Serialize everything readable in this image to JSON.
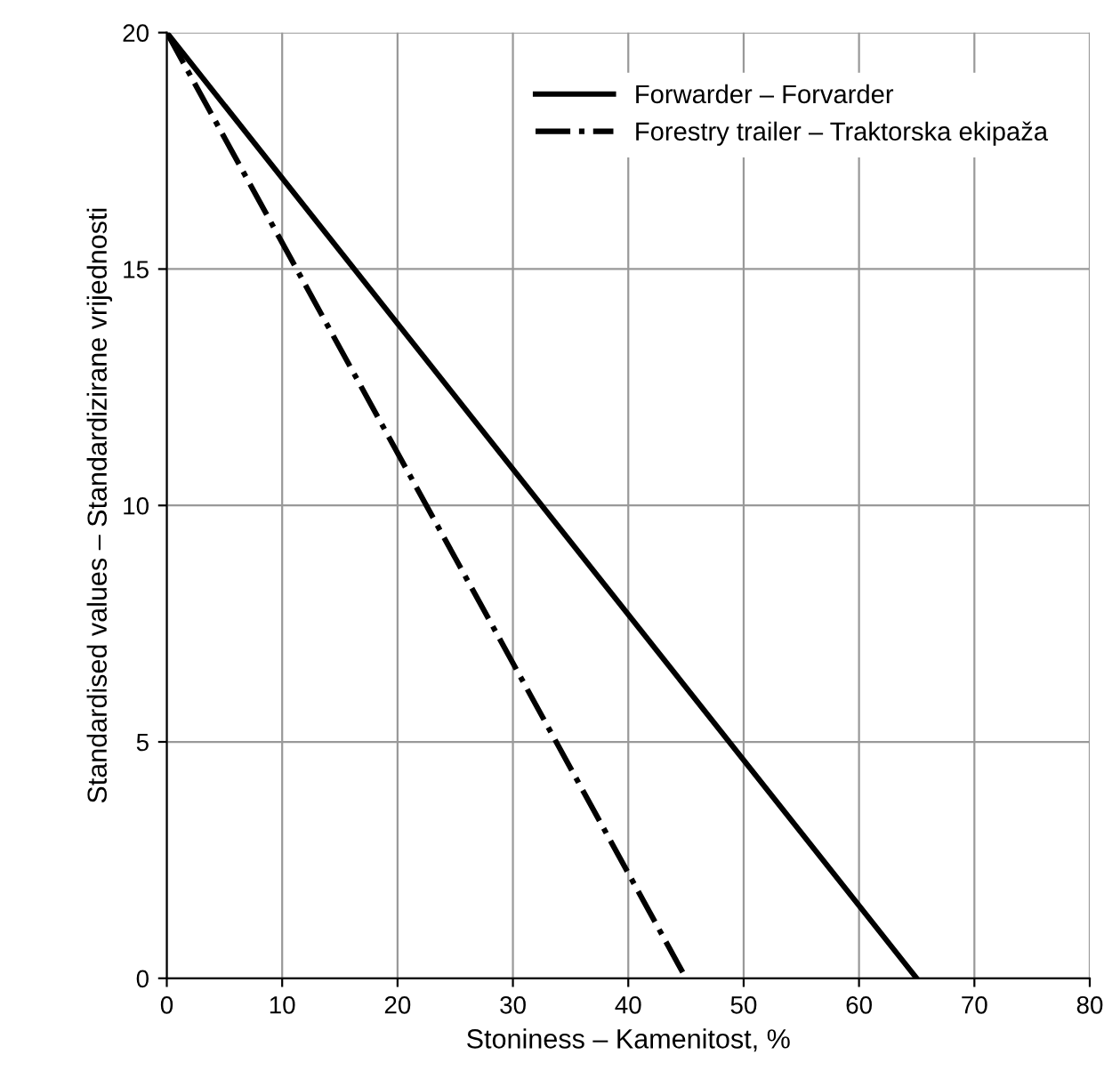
{
  "chart_data": {
    "type": "line",
    "xlabel": "Stoniness – Kamenitost, %",
    "ylabel": "Standardised values – Standardizirane vrijednosti",
    "series": [
      {
        "name": "Forwarder – Forvarder",
        "color": "#000000",
        "line_style": "solid",
        "x": [
          0,
          65
        ],
        "values": [
          20,
          0
        ]
      },
      {
        "name": "Forestry trailer – Traktorska ekipaža",
        "color": "#000000",
        "line_style": "dashdot",
        "x": [
          0,
          45
        ],
        "values": [
          20,
          0
        ]
      }
    ],
    "xlim": [
      0,
      80
    ],
    "xticks": [
      0,
      10,
      20,
      30,
      40,
      50,
      60,
      70,
      80
    ],
    "ylim": [
      0,
      20
    ],
    "yticks": [
      0,
      5,
      10,
      15,
      20
    ],
    "grid": true,
    "legend": "top right",
    "marker": "none"
  }
}
